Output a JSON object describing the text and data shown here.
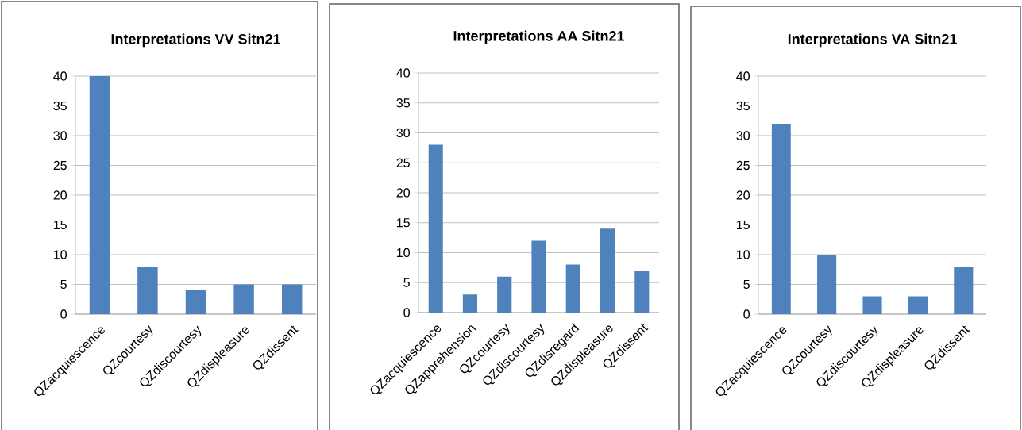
{
  "chart_data": [
    {
      "type": "bar",
      "title": "Interpretations VV Sitn21",
      "categories": [
        "QZacquiescence",
        "QZcourtesy",
        "QZdiscourtesy",
        "QZdispleasure",
        "QZdissent"
      ],
      "values": [
        40,
        8,
        4,
        5,
        5
      ],
      "color": "#4f81bd",
      "ylim": [
        0,
        40
      ],
      "yticks": [
        0,
        5,
        10,
        15,
        20,
        25,
        30,
        35,
        40
      ],
      "grid": "y"
    },
    {
      "type": "bar",
      "title": "Interpretations AA Sitn21",
      "categories": [
        "QZacquiescence",
        "QZapprehension",
        "QZcourtesy",
        "QZdiscourtesy",
        "QZdisregard",
        "QZdispleasure",
        "QZdissent"
      ],
      "values": [
        28,
        3,
        6,
        12,
        8,
        14,
        7
      ],
      "color": "#4f81bd",
      "ylim": [
        0,
        40
      ],
      "yticks": [
        0,
        5,
        10,
        15,
        20,
        25,
        30,
        35,
        40
      ],
      "grid": "y"
    },
    {
      "type": "bar",
      "title": "Interpretations VA Sitn21",
      "categories": [
        "QZacquiescence",
        "QZcourtesy",
        "QZdiscourtesy",
        "QZdispleasure",
        "QZdissent"
      ],
      "values": [
        32,
        10,
        3,
        3,
        8
      ],
      "color": "#4f81bd",
      "ylim": [
        0,
        40
      ],
      "yticks": [
        0,
        5,
        10,
        15,
        20,
        25,
        30,
        35,
        40
      ],
      "grid": "y"
    }
  ]
}
